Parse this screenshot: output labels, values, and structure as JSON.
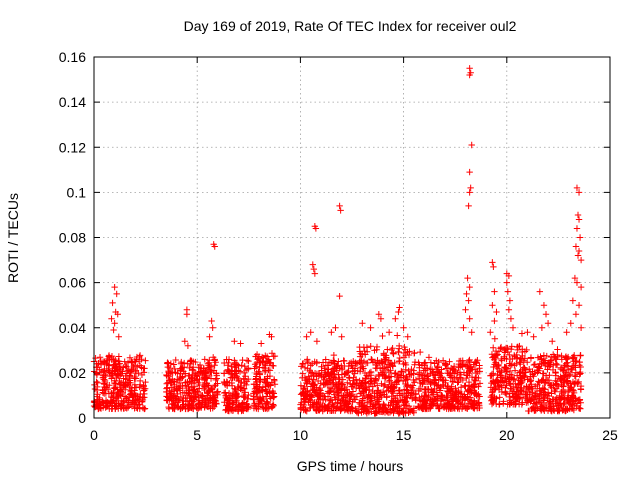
{
  "chart_data": {
    "type": "scatter",
    "title": "Day 169 of 2019, Rate Of TEC Index for receiver oul2",
    "xlabel": "GPS time / hours",
    "ylabel": "ROTI / TECUs",
    "xlim": [
      0,
      25
    ],
    "ylim": [
      0,
      0.16
    ],
    "x_ticks": [
      0,
      5,
      10,
      15,
      20,
      25
    ],
    "y_ticks": [
      0,
      0.02,
      0.04,
      0.06,
      0.08,
      0.1,
      0.12,
      0.14,
      0.16
    ],
    "x_tick_labels": [
      "0",
      "5",
      "10",
      "15",
      "20",
      "25"
    ],
    "y_tick_labels": [
      "0",
      "0.02",
      "0.04",
      "0.06",
      "0.08",
      "0.1",
      "0.12",
      "0.14",
      "0.16"
    ],
    "grid": true,
    "marker": "+",
    "color": "#ff0000",
    "dense_segments": [
      {
        "x0": 0.0,
        "x1": 2.5,
        "ylo": 0.004,
        "yhi": 0.028
      },
      {
        "x0": 3.5,
        "x1": 6.0,
        "ylo": 0.004,
        "yhi": 0.026
      },
      {
        "x0": 6.3,
        "x1": 7.5,
        "ylo": 0.003,
        "yhi": 0.026
      },
      {
        "x0": 7.7,
        "x1": 8.8,
        "ylo": 0.004,
        "yhi": 0.028
      },
      {
        "x0": 10.0,
        "x1": 12.7,
        "ylo": 0.003,
        "yhi": 0.026
      },
      {
        "x0": 12.7,
        "x1": 15.6,
        "ylo": 0.002,
        "yhi": 0.032
      },
      {
        "x0": 15.7,
        "x1": 18.7,
        "ylo": 0.004,
        "yhi": 0.026
      },
      {
        "x0": 19.2,
        "x1": 21.0,
        "ylo": 0.006,
        "yhi": 0.032
      },
      {
        "x0": 21.0,
        "x1": 23.6,
        "ylo": 0.003,
        "yhi": 0.028
      }
    ],
    "points": [
      [
        1.0,
        0.058
      ],
      [
        1.1,
        0.055
      ],
      [
        0.9,
        0.051
      ],
      [
        1.05,
        0.047
      ],
      [
        0.85,
        0.044
      ],
      [
        1.15,
        0.046
      ],
      [
        1.0,
        0.042
      ],
      [
        0.95,
        0.039
      ],
      [
        1.2,
        0.036
      ],
      [
        4.5,
        0.048
      ],
      [
        4.5,
        0.046
      ],
      [
        4.4,
        0.034
      ],
      [
        4.55,
        0.032
      ],
      [
        5.8,
        0.077
      ],
      [
        5.85,
        0.076
      ],
      [
        5.7,
        0.043
      ],
      [
        5.75,
        0.04
      ],
      [
        5.6,
        0.036
      ],
      [
        6.8,
        0.034
      ],
      [
        7.1,
        0.033
      ],
      [
        8.1,
        0.033
      ],
      [
        8.5,
        0.037
      ],
      [
        8.6,
        0.036
      ],
      [
        10.7,
        0.085
      ],
      [
        10.75,
        0.084
      ],
      [
        10.6,
        0.068
      ],
      [
        10.65,
        0.066
      ],
      [
        10.7,
        0.064
      ],
      [
        10.5,
        0.038
      ],
      [
        10.8,
        0.034
      ],
      [
        10.3,
        0.036
      ],
      [
        11.9,
        0.094
      ],
      [
        11.95,
        0.092
      ],
      [
        11.9,
        0.054
      ],
      [
        11.7,
        0.04
      ],
      [
        11.5,
        0.038
      ],
      [
        12.0,
        0.036
      ],
      [
        13.0,
        0.042
      ],
      [
        13.4,
        0.04
      ],
      [
        13.8,
        0.046
      ],
      [
        13.9,
        0.044
      ],
      [
        14.3,
        0.038
      ],
      [
        14.8,
        0.049
      ],
      [
        14.75,
        0.047
      ],
      [
        14.6,
        0.044
      ],
      [
        15.0,
        0.04
      ],
      [
        15.2,
        0.036
      ],
      [
        18.2,
        0.155
      ],
      [
        18.25,
        0.153
      ],
      [
        18.2,
        0.152
      ],
      [
        18.3,
        0.121
      ],
      [
        18.2,
        0.109
      ],
      [
        18.25,
        0.102
      ],
      [
        18.2,
        0.1
      ],
      [
        18.15,
        0.094
      ],
      [
        18.1,
        0.062
      ],
      [
        18.2,
        0.058
      ],
      [
        18.05,
        0.055
      ],
      [
        18.15,
        0.052
      ],
      [
        18.0,
        0.048
      ],
      [
        18.2,
        0.044
      ],
      [
        17.9,
        0.04
      ],
      [
        18.3,
        0.038
      ],
      [
        19.3,
        0.069
      ],
      [
        19.35,
        0.067
      ],
      [
        19.4,
        0.056
      ],
      [
        19.3,
        0.05
      ],
      [
        19.5,
        0.047
      ],
      [
        19.4,
        0.043
      ],
      [
        19.2,
        0.038
      ],
      [
        20.0,
        0.064
      ],
      [
        20.1,
        0.063
      ],
      [
        20.0,
        0.06
      ],
      [
        20.05,
        0.056
      ],
      [
        20.15,
        0.052
      ],
      [
        20.1,
        0.048
      ],
      [
        20.2,
        0.044
      ],
      [
        20.3,
        0.04
      ],
      [
        21.0,
        0.038
      ],
      [
        21.3,
        0.036
      ],
      [
        21.6,
        0.056
      ],
      [
        21.8,
        0.05
      ],
      [
        21.9,
        0.046
      ],
      [
        22.0,
        0.042
      ],
      [
        21.7,
        0.04
      ],
      [
        22.2,
        0.034
      ],
      [
        23.4,
        0.102
      ],
      [
        23.5,
        0.1
      ],
      [
        23.45,
        0.09
      ],
      [
        23.5,
        0.088
      ],
      [
        23.4,
        0.084
      ],
      [
        23.55,
        0.08
      ],
      [
        23.35,
        0.076
      ],
      [
        23.5,
        0.074
      ],
      [
        23.45,
        0.072
      ],
      [
        23.6,
        0.07
      ],
      [
        23.3,
        0.062
      ],
      [
        23.4,
        0.06
      ],
      [
        23.6,
        0.058
      ],
      [
        23.2,
        0.052
      ],
      [
        23.5,
        0.05
      ],
      [
        23.35,
        0.046
      ],
      [
        23.1,
        0.042
      ],
      [
        23.6,
        0.04
      ],
      [
        22.9,
        0.038
      ]
    ]
  }
}
